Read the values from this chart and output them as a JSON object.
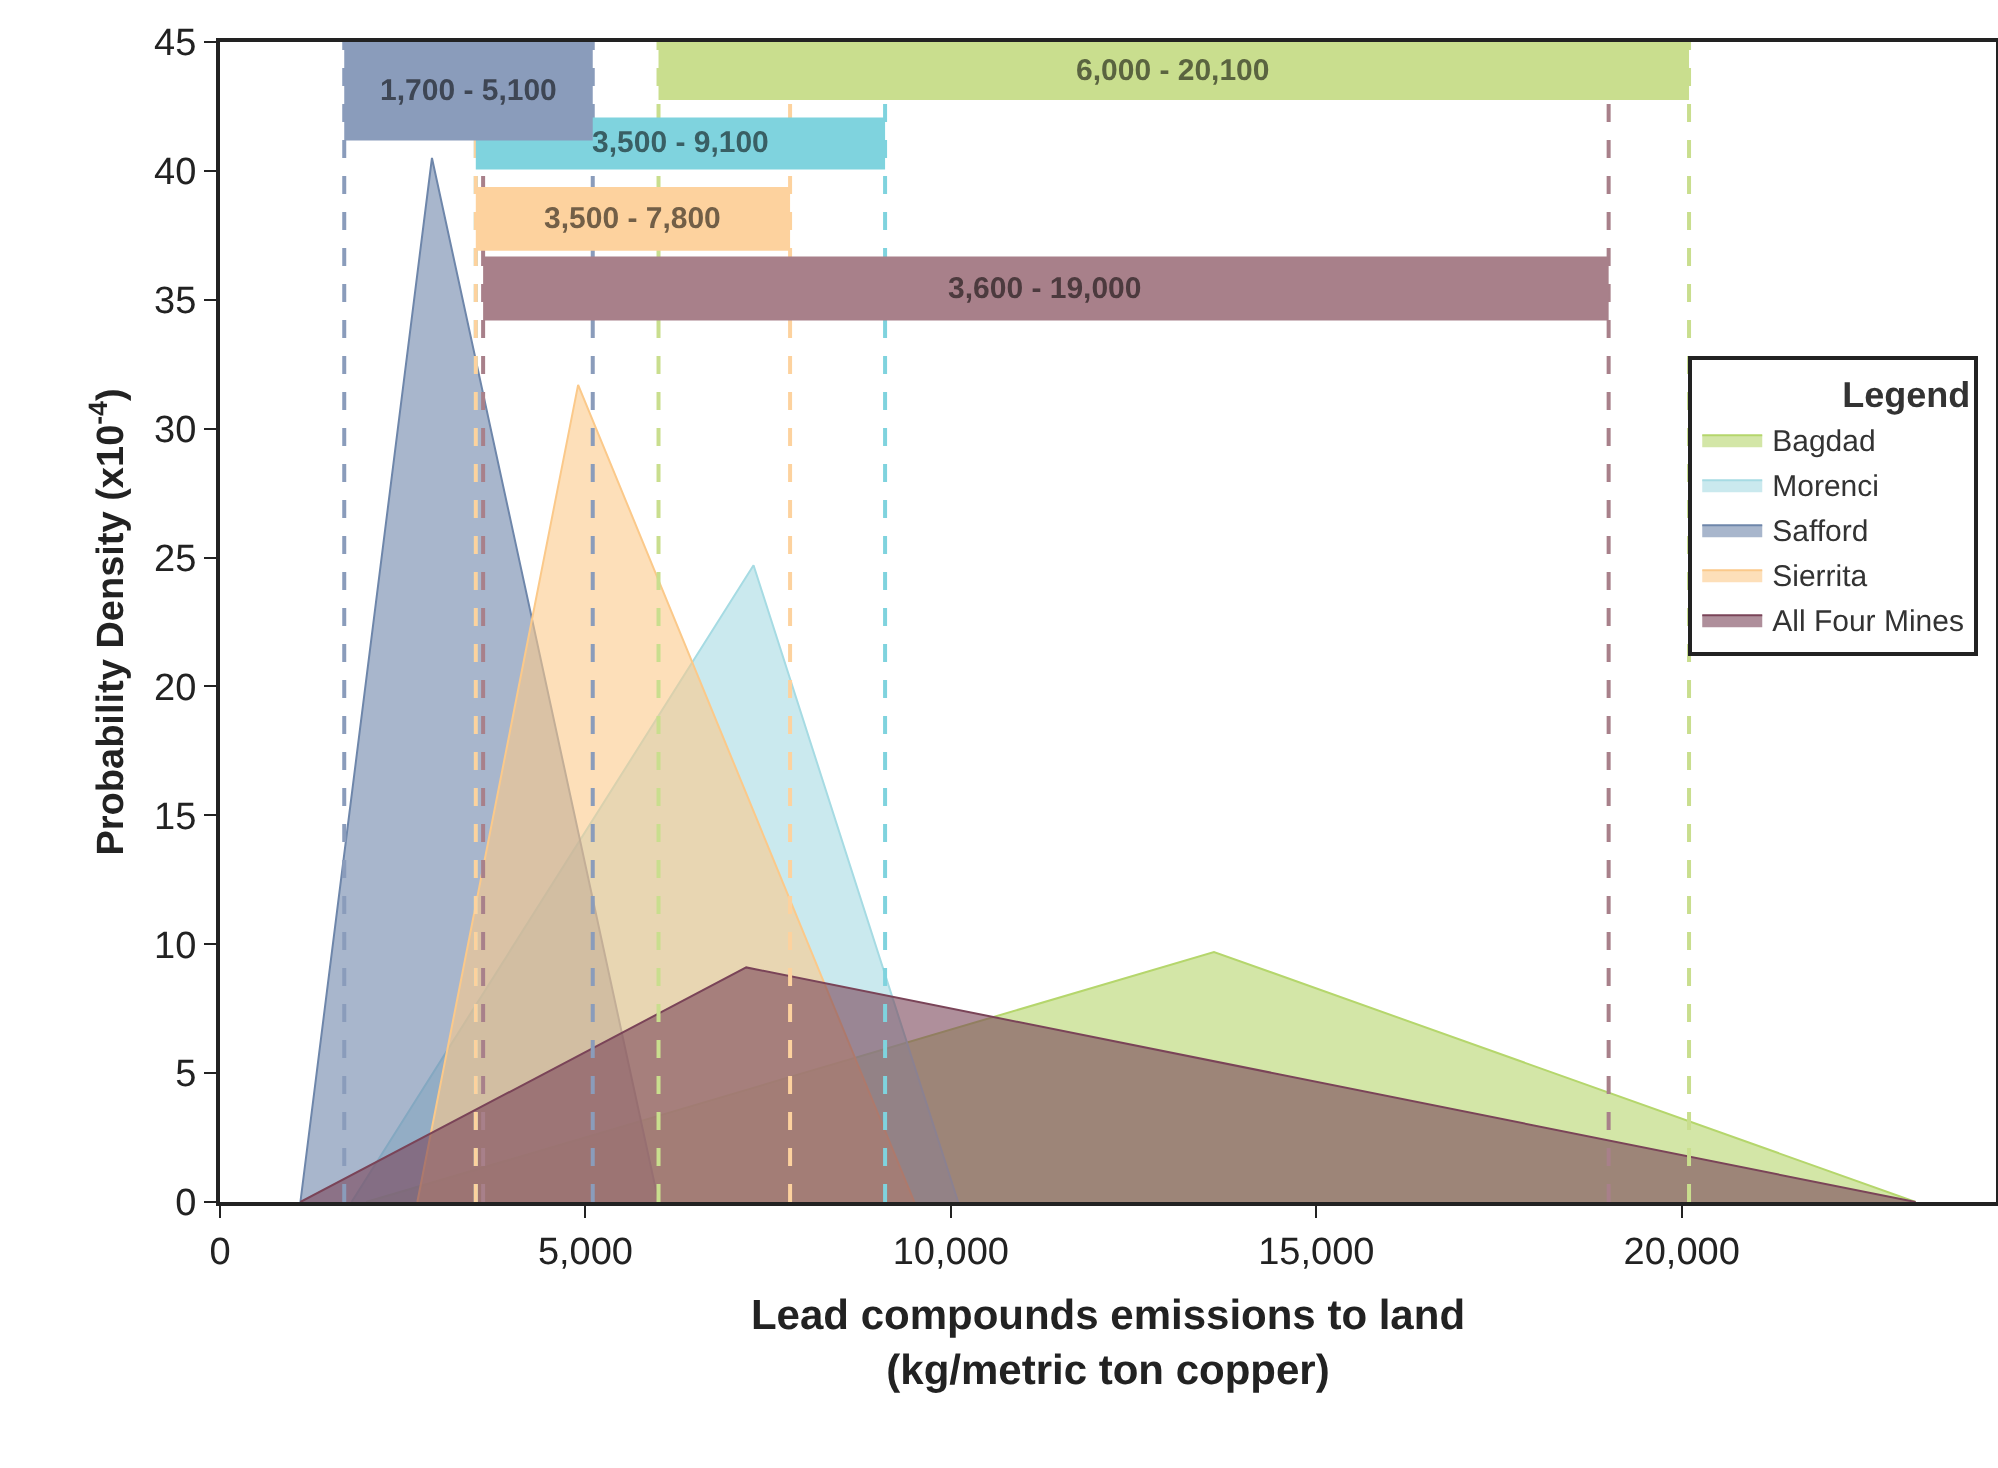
{
  "chart_data": {
    "type": "area",
    "xlabel": "Lead compounds emissions to land\n(kg/metric ton copper)",
    "ylabel": "Probability Density (x10$^{-4}$)",
    "legend_title": "Legend",
    "legend": "right",
    "xlim": [
      0,
      24300
    ],
    "xticks": [
      0,
      {
        "value": 5000,
        "label": "5,000"
      },
      {
        "value": 10000,
        "label": "10,000"
      },
      {
        "value": 15000,
        "label": "15,000"
      },
      {
        "value": 20000,
        "label": "20,000"
      }
    ],
    "ylim": [
      0,
      45
    ],
    "yticks": [
      0,
      5,
      10,
      15,
      20,
      25,
      30,
      35,
      40,
      45
    ],
    "grid": false,
    "series": [
      {
        "name": "Bagdad",
        "color": "#b5d66c",
        "x": [
          2000,
          13600,
          23200
        ],
        "values": [
          0,
          9.7,
          0
        ]
      },
      {
        "name": "Morenci",
        "color": "#a6dbe3",
        "x": [
          1800,
          7300,
          10100
        ],
        "values": [
          0,
          24.7,
          0
        ]
      },
      {
        "name": "Safford",
        "color": "#6e86aa",
        "x": [
          1100,
          2900,
          6000
        ],
        "values": [
          0,
          40.5,
          0
        ]
      },
      {
        "name": "Sierrita",
        "color": "#fbc98a",
        "x": [
          2700,
          4900,
          9500
        ],
        "values": [
          0,
          31.7,
          0
        ]
      },
      {
        "name": "All Four Mines",
        "color": "#7a4458",
        "x": [
          1100,
          7200,
          23200
        ],
        "values": [
          0,
          9.1,
          0
        ]
      }
    ],
    "ref_lines": [
      {
        "axis": "x",
        "value": 6000,
        "color": "#c9de8e",
        "line_style": "dashed"
      },
      {
        "axis": "x",
        "value": 20100,
        "color": "#c9de8e",
        "line_style": "dashed"
      },
      {
        "axis": "x",
        "value": 3500,
        "color": "#7fd3de",
        "line_style": "dashed"
      },
      {
        "axis": "x",
        "value": 9100,
        "color": "#7fd3de",
        "line_style": "dashed"
      },
      {
        "axis": "x",
        "value": 1700,
        "color": "#8a9cbb",
        "line_style": "dashed"
      },
      {
        "axis": "x",
        "value": 5100,
        "color": "#8a9cbb",
        "line_style": "dashed"
      },
      {
        "axis": "x",
        "value": 3500,
        "color": "#fdd29e",
        "line_style": "dashed"
      },
      {
        "axis": "x",
        "value": 7800,
        "color": "#fdd29e",
        "line_style": "dashed"
      },
      {
        "axis": "x",
        "value": 3600,
        "color": "#a8808a",
        "line_style": "dashed"
      },
      {
        "axis": "x",
        "value": 19000,
        "color": "#a8808a",
        "line_style": "dashed"
      }
    ],
    "bands": [
      {
        "axis": "x",
        "from": 6000,
        "to": 20100,
        "label": "6,000 - 20,100",
        "color": "#c9de8e"
      },
      {
        "axis": "x",
        "from": 3500,
        "to": 9100,
        "label": "3,500 - 9,100",
        "color": "#7fd3de"
      },
      {
        "axis": "x",
        "from": 1700,
        "to": 5100,
        "label": "1,700 - 5,100",
        "color": "#8a9cbb"
      },
      {
        "axis": "x",
        "from": 3500,
        "to": 7800,
        "label": "3,500 - 7,800",
        "color": "#fdd29e"
      },
      {
        "axis": "x",
        "from": 3600,
        "to": 19000,
        "label": "3,600 - 19,000",
        "color": "#a8808a"
      }
    ]
  }
}
